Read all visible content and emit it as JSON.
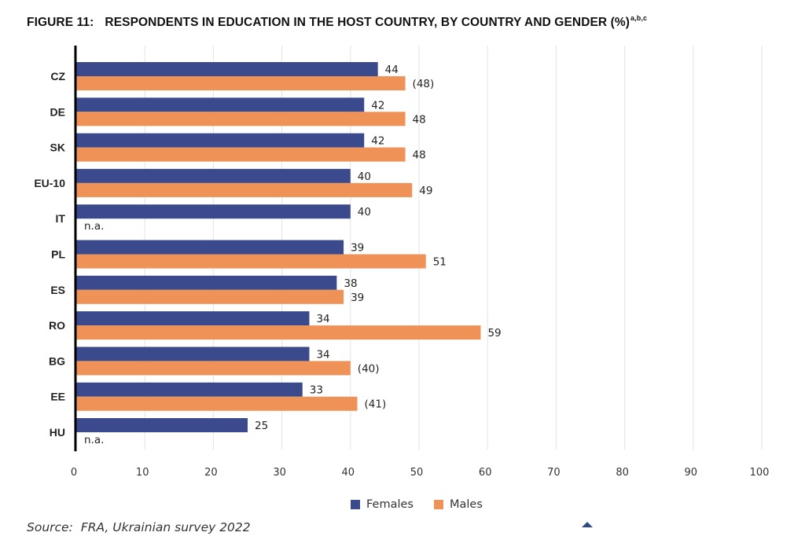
{
  "figure_label": "FIGURE 11:",
  "figure_title": "RESPONDENTS IN EDUCATION IN THE HOST COUNTRY, BY COUNTRY AND GENDER (%)",
  "figure_superscript": "a,b,c",
  "source_label": "Source:",
  "source_text": "FRA, Ukrainian survey 2022",
  "colors": {
    "females": "#3a4a8c",
    "males": "#ee9257",
    "grid": "#e3e3e3",
    "axis": "#000000"
  },
  "chart_data": {
    "type": "bar",
    "orientation": "horizontal",
    "title": "RESPONDENTS IN EDUCATION IN THE HOST COUNTRY, BY COUNTRY AND GENDER (%)",
    "categories": [
      "CZ",
      "DE",
      "SK",
      "EU-10",
      "IT",
      "PL",
      "ES",
      "RO",
      "BG",
      "EE",
      "HU"
    ],
    "series": [
      {
        "name": "Females",
        "values": [
          44,
          42,
          42,
          40,
          40,
          39,
          38,
          34,
          34,
          33,
          25
        ],
        "labels": [
          "44",
          "42",
          "42",
          "40",
          "40",
          "39",
          "38",
          "34",
          "34",
          "33",
          "25"
        ]
      },
      {
        "name": "Males",
        "values": [
          48,
          48,
          48,
          49,
          null,
          51,
          39,
          59,
          40,
          41,
          null
        ],
        "labels": [
          "(48)",
          "48",
          "48",
          "49",
          "n.a.",
          "51",
          "39",
          "59",
          "(40)",
          "(41)",
          "n.a."
        ]
      }
    ],
    "xlim": [
      0,
      100
    ],
    "xticks": [
      "0",
      "10",
      "20",
      "30",
      "40",
      "50",
      "60",
      "70",
      "80",
      "90",
      "100"
    ],
    "grid": true,
    "legend": "bottom-center"
  }
}
